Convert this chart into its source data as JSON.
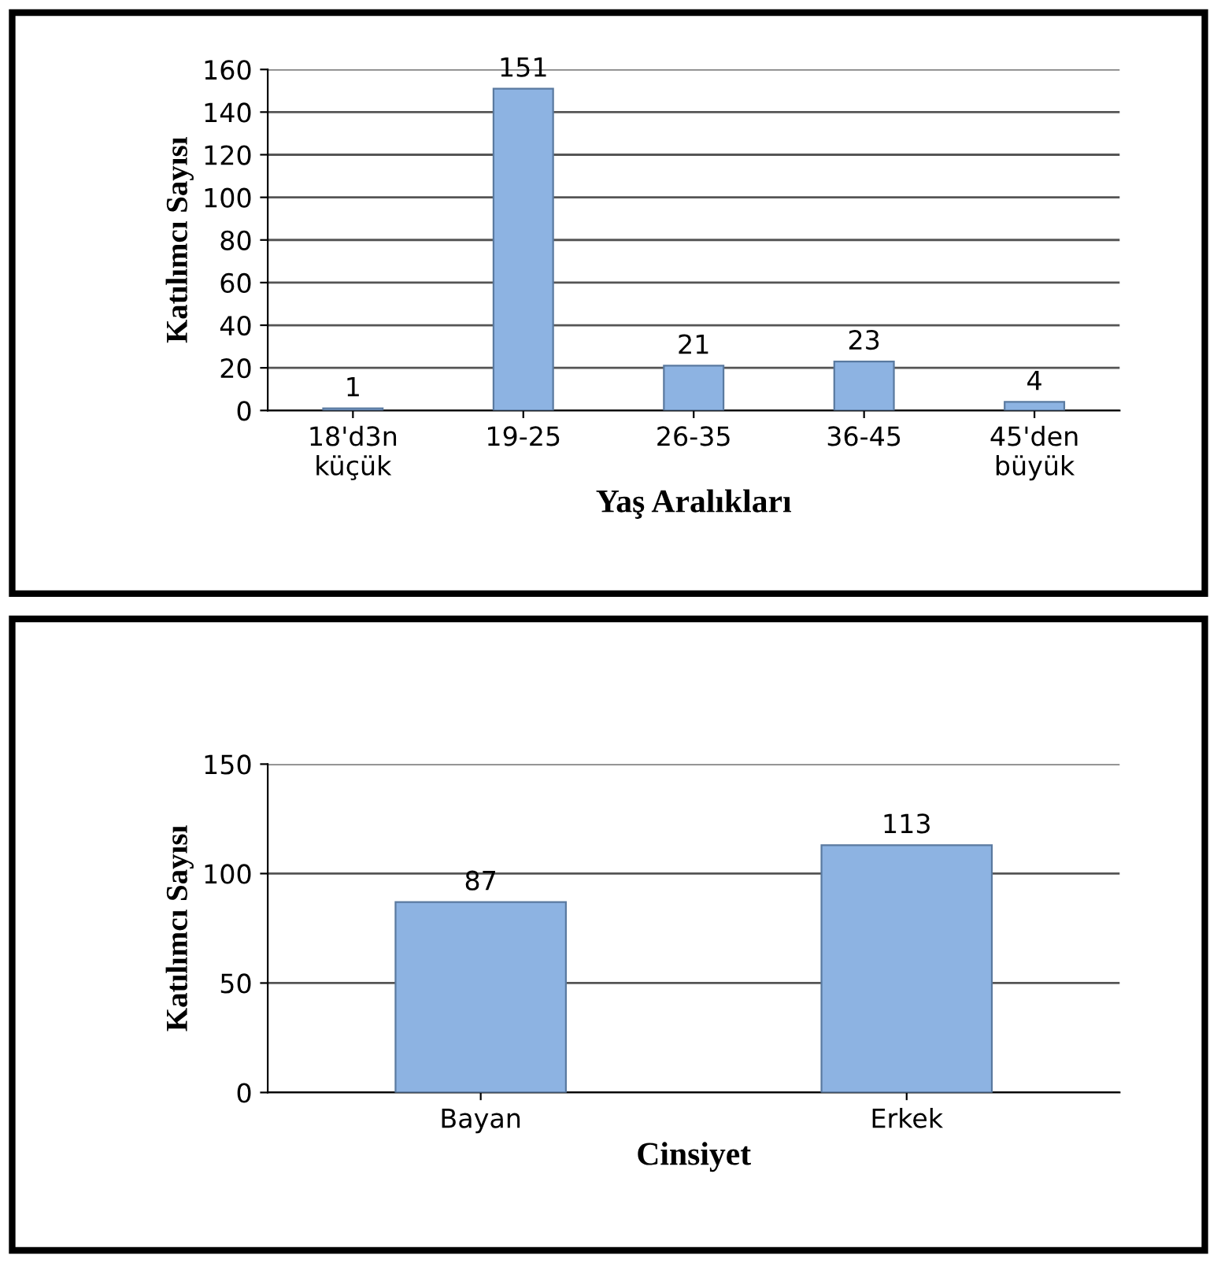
{
  "chart_data": [
    {
      "type": "bar",
      "categories": [
        "18'd3n\nküçük",
        "19-25",
        "26-35",
        "36-45",
        "45'den\nbüyük"
      ],
      "values": [
        1,
        151,
        21,
        23,
        4
      ],
      "color": "#8db3e2",
      "ylim": [
        0,
        160
      ],
      "yticks": [
        0,
        20,
        40,
        60,
        80,
        100,
        120,
        140,
        160
      ],
      "grid": "y",
      "data_labels": true,
      "xlabel": "Yaş Aralıkları",
      "ylabel": "Katılımcı Sayısı"
    },
    {
      "type": "bar",
      "categories": [
        "Bayan",
        "Erkek"
      ],
      "values": [
        87,
        113
      ],
      "color": "#8db3e2",
      "ylim": [
        0,
        150
      ],
      "yticks": [
        0,
        50,
        100,
        150
      ],
      "grid": "y",
      "data_labels": true,
      "xlabel": "Cinsiyet",
      "ylabel": "Katılımcı Sayısı"
    }
  ]
}
